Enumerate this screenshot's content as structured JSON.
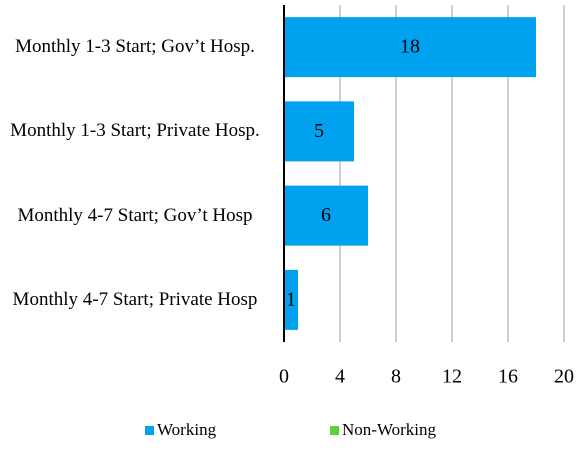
{
  "chart_data": {
    "type": "bar",
    "orientation": "horizontal",
    "categories": [
      "Monthly 1-3 Start; Gov’t Hosp.",
      "Monthly 1-3 Start; Private Hosp.",
      "Monthly 4-7 Start; Gov’t Hosp",
      "Monthly 4-7 Start; Private Hosp"
    ],
    "series": [
      {
        "name": "Working",
        "color": "#00a2f0",
        "values": [
          18,
          5,
          6,
          1
        ]
      },
      {
        "name": "Non-Working",
        "color": "#5fd03a",
        "values": [
          0,
          0,
          0,
          0
        ]
      }
    ],
    "xlim": [
      0,
      20
    ],
    "xticks": [
      0,
      4,
      8,
      12,
      16,
      20
    ],
    "grid": true,
    "legend": "bottom"
  }
}
